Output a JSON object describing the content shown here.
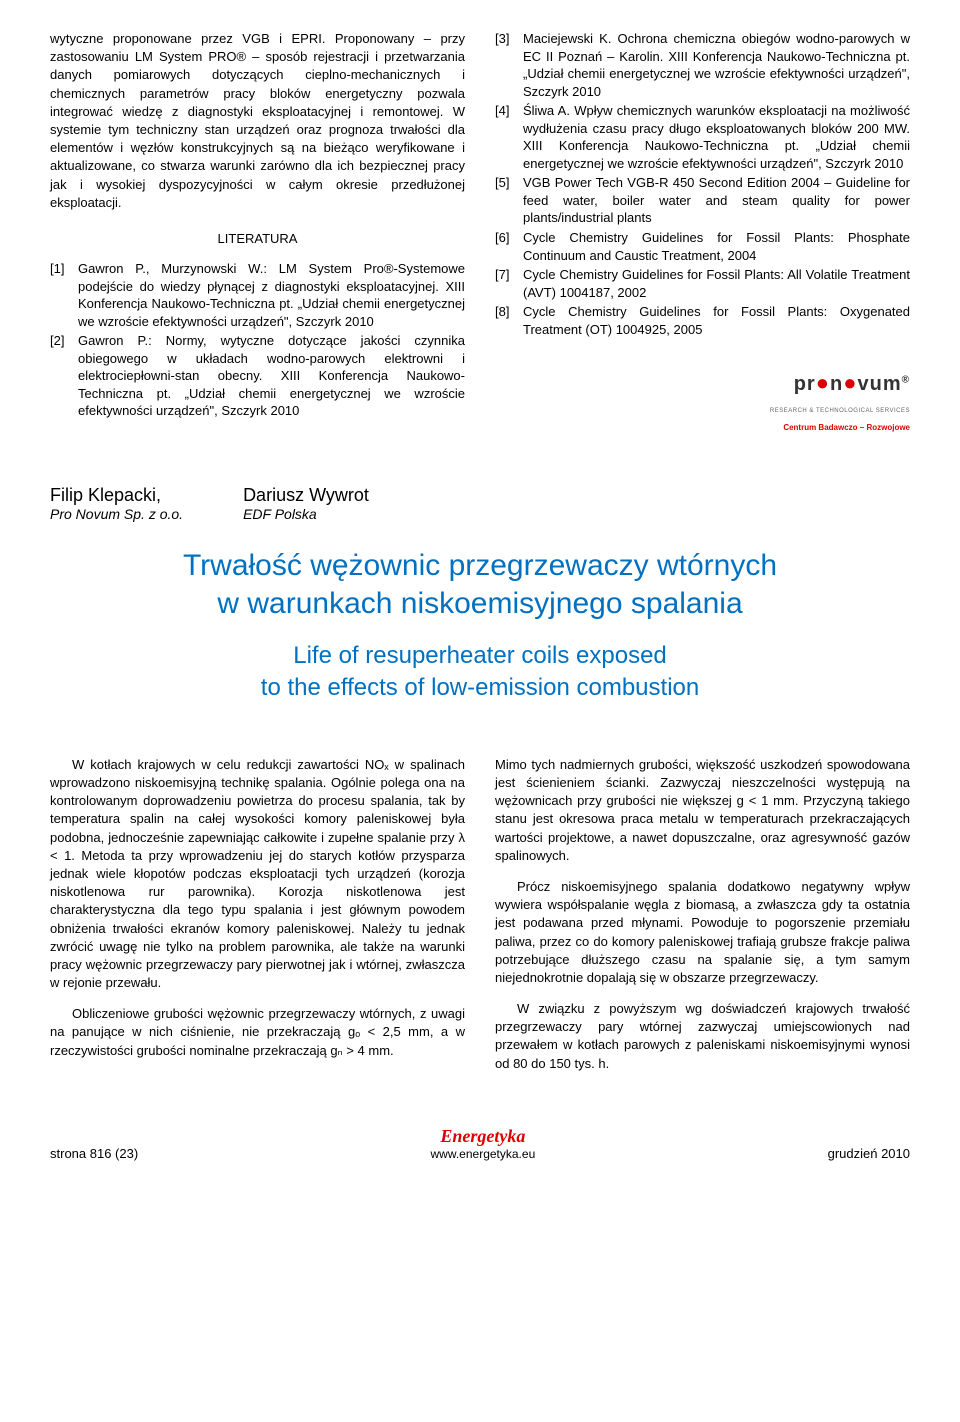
{
  "top": {
    "left_para": "wytyczne proponowane przez VGB i EPRI. Proponowany – przy zastosowaniu LM System PRO® – sposób rejestracji i przetwarzania danych pomiarowych dotyczących cieplno-mechanicznych i chemicznych parametrów pracy bloków energetyczny pozwala integrować wiedzę z diagnostyki eksploatacyjnej i remontowej. W systemie tym techniczny stan urządzeń oraz prognoza trwałości dla elementów i węzłów konstrukcyjnych są na bieżąco weryfikowane i aktualizowane, co stwarza warunki zarówno dla ich bezpiecznej pracy jak i wysokiej dyspozycyjności w całym okresie przedłużonej eksploatacji.",
    "lit_heading": "LITERATURA",
    "refs_left": [
      {
        "n": "[1]",
        "t": "Gawron P., Murzynowski W.: LM System Pro®-Systemowe podejście do wiedzy płynącej z diagnostyki eksploatacyjnej. XIII Konferencja Naukowo-Techniczna pt. „Udział chemii energetycznej we wzroście efektywności urządzeń\", Szczyrk 2010"
      },
      {
        "n": "[2]",
        "t": "Gawron P.: Normy, wytyczne dotyczące jakości czynnika obiegowego w układach wodno-parowych elektrowni i elektrociepłowni-stan obecny. XIII Konferencja Naukowo-Techniczna pt. „Udział chemii energetycznej we wzroście efektywności urządzeń\", Szczyrk 2010"
      }
    ],
    "refs_right": [
      {
        "n": "[3]",
        "t": "Maciejewski K. Ochrona chemiczna obiegów wodno-parowych w EC II Poznań – Karolin. XIII Konferencja Naukowo-Techniczna pt. „Udział chemii energetycznej we wzroście efektywności urządzeń\", Szczyrk 2010"
      },
      {
        "n": "[4]",
        "t": "Śliwa A. Wpływ chemicznych warunków eksploatacji na możliwość wydłużenia czasu pracy długo eksploatowanych bloków 200 MW. XIII Konferencja Naukowo-Techniczna pt. „Udział chemii energetycznej we wzroście efektywności urządzeń\", Szczyrk 2010"
      },
      {
        "n": "[5]",
        "t": "VGB Power Tech VGB-R 450 Second Edition 2004 – Guideline for feed water, boiler water and steam quality for power plants/industrial plants"
      },
      {
        "n": "[6]",
        "t": "Cycle Chemistry Guidelines for Fossil Plants: Phosphate Continuum and Caustic Treatment, 2004"
      },
      {
        "n": "[7]",
        "t": "Cycle Chemistry Guidelines for Fossil Plants: All Volatile Treatment (AVT) 1004187, 2002"
      },
      {
        "n": "[8]",
        "t": "Cycle Chemistry Guidelines for Fossil Plants: Oxygenated Treatment (OT) 1004925, 2005"
      }
    ],
    "logo": {
      "pre": "pr",
      "mid": "n",
      "post": "vum",
      "sub1": "RESEARCH & TECHNOLOGICAL SERVICES",
      "sub2": "Centrum Badawczo – Rozwojowe"
    }
  },
  "authors": [
    {
      "name": "Filip Klepacki,",
      "aff": "Pro Novum Sp. z o.o."
    },
    {
      "name": "Dariusz Wywrot",
      "aff": "EDF Polska"
    }
  ],
  "title_pl_l1": "Trwałość wężownic przegrzewaczy wtórnych",
  "title_pl_l2": "w warunkach niskoemisyjnego spalania",
  "title_en_l1": "Life of resuperheater coils exposed",
  "title_en_l2": "to the effects of low-emission combustion",
  "body": {
    "left": [
      "W kotłach krajowych w celu redukcji zawartości NOₓ w spalinach wprowadzono niskoemisyjną technikę spalania. Ogólnie polega ona na kontrolowanym doprowadzeniu powietrza do procesu spalania, tak by temperatura spalin na całej wysokości komory paleniskowej była podobna, jednocześnie zapewniając całkowite i zupełne spalanie przy λ < 1. Metoda ta przy wprowadzeniu jej do starych kotłów przysparza jednak wiele kłopotów podczas eksploatacji tych urządzeń (korozja niskotlenowa rur parownika). Korozja niskotlenowa jest charakterystyczna dla tego typu spalania i jest głównym powodem obniżenia trwałości ekranów komory paleniskowej. Należy tu jednak zwrócić uwagę nie tylko na problem parownika, ale także na warunki pracy wężownic przegrzewaczy pary pierwotnej jak i wtórnej, zwłaszcza w rejonie przewału.",
      "Obliczeniowe grubości wężownic przegrzewaczy wtórnych, z uwagi na panujące w nich ciśnienie, nie przekraczają gₒ < 2,5 mm, a w rzeczywistości grubości nominalne przekraczają gₙ > 4 mm."
    ],
    "right": [
      "Mimo tych nadmiernych grubości, większość uszkodzeń spowodowana jest ścienieniem ścianki. Zazwyczaj nieszczelności występują na wężownicach przy grubości nie większej g < 1 mm. Przyczyną takiego stanu jest okresowa praca metalu w temperaturach przekraczających wartości projektowe, a nawet dopuszczalne, oraz agresywność gazów spalinowych.",
      "Prócz niskoemisyjnego spalania dodatkowo negatywny wpływ wywiera współspalanie węgla z biomasą, a zwłaszcza gdy ta ostatnia jest podawana przed młynami. Powoduje to pogorszenie przemiału paliwa, przez co do komory paleniskowej trafiają grubsze frakcje paliwa potrzebujące dłuższego czasu na spalanie się, a tym samym niejednokrotnie dopalają się w obszarze przegrzewaczy.",
      "W związku z powyższym wg doświadczeń krajowych trwałość przegrzewaczy pary wtórnej zazwyczaj umiejscowionych nad przewałem w kotłach parowych z paleniskami niskoemisyjnymi wynosi od 80 do 150 tys. h."
    ]
  },
  "footer": {
    "left": "strona 816  (23)",
    "logo": "Energetyka",
    "url": "www.energetyka.eu",
    "right": "grudzień 2010"
  }
}
